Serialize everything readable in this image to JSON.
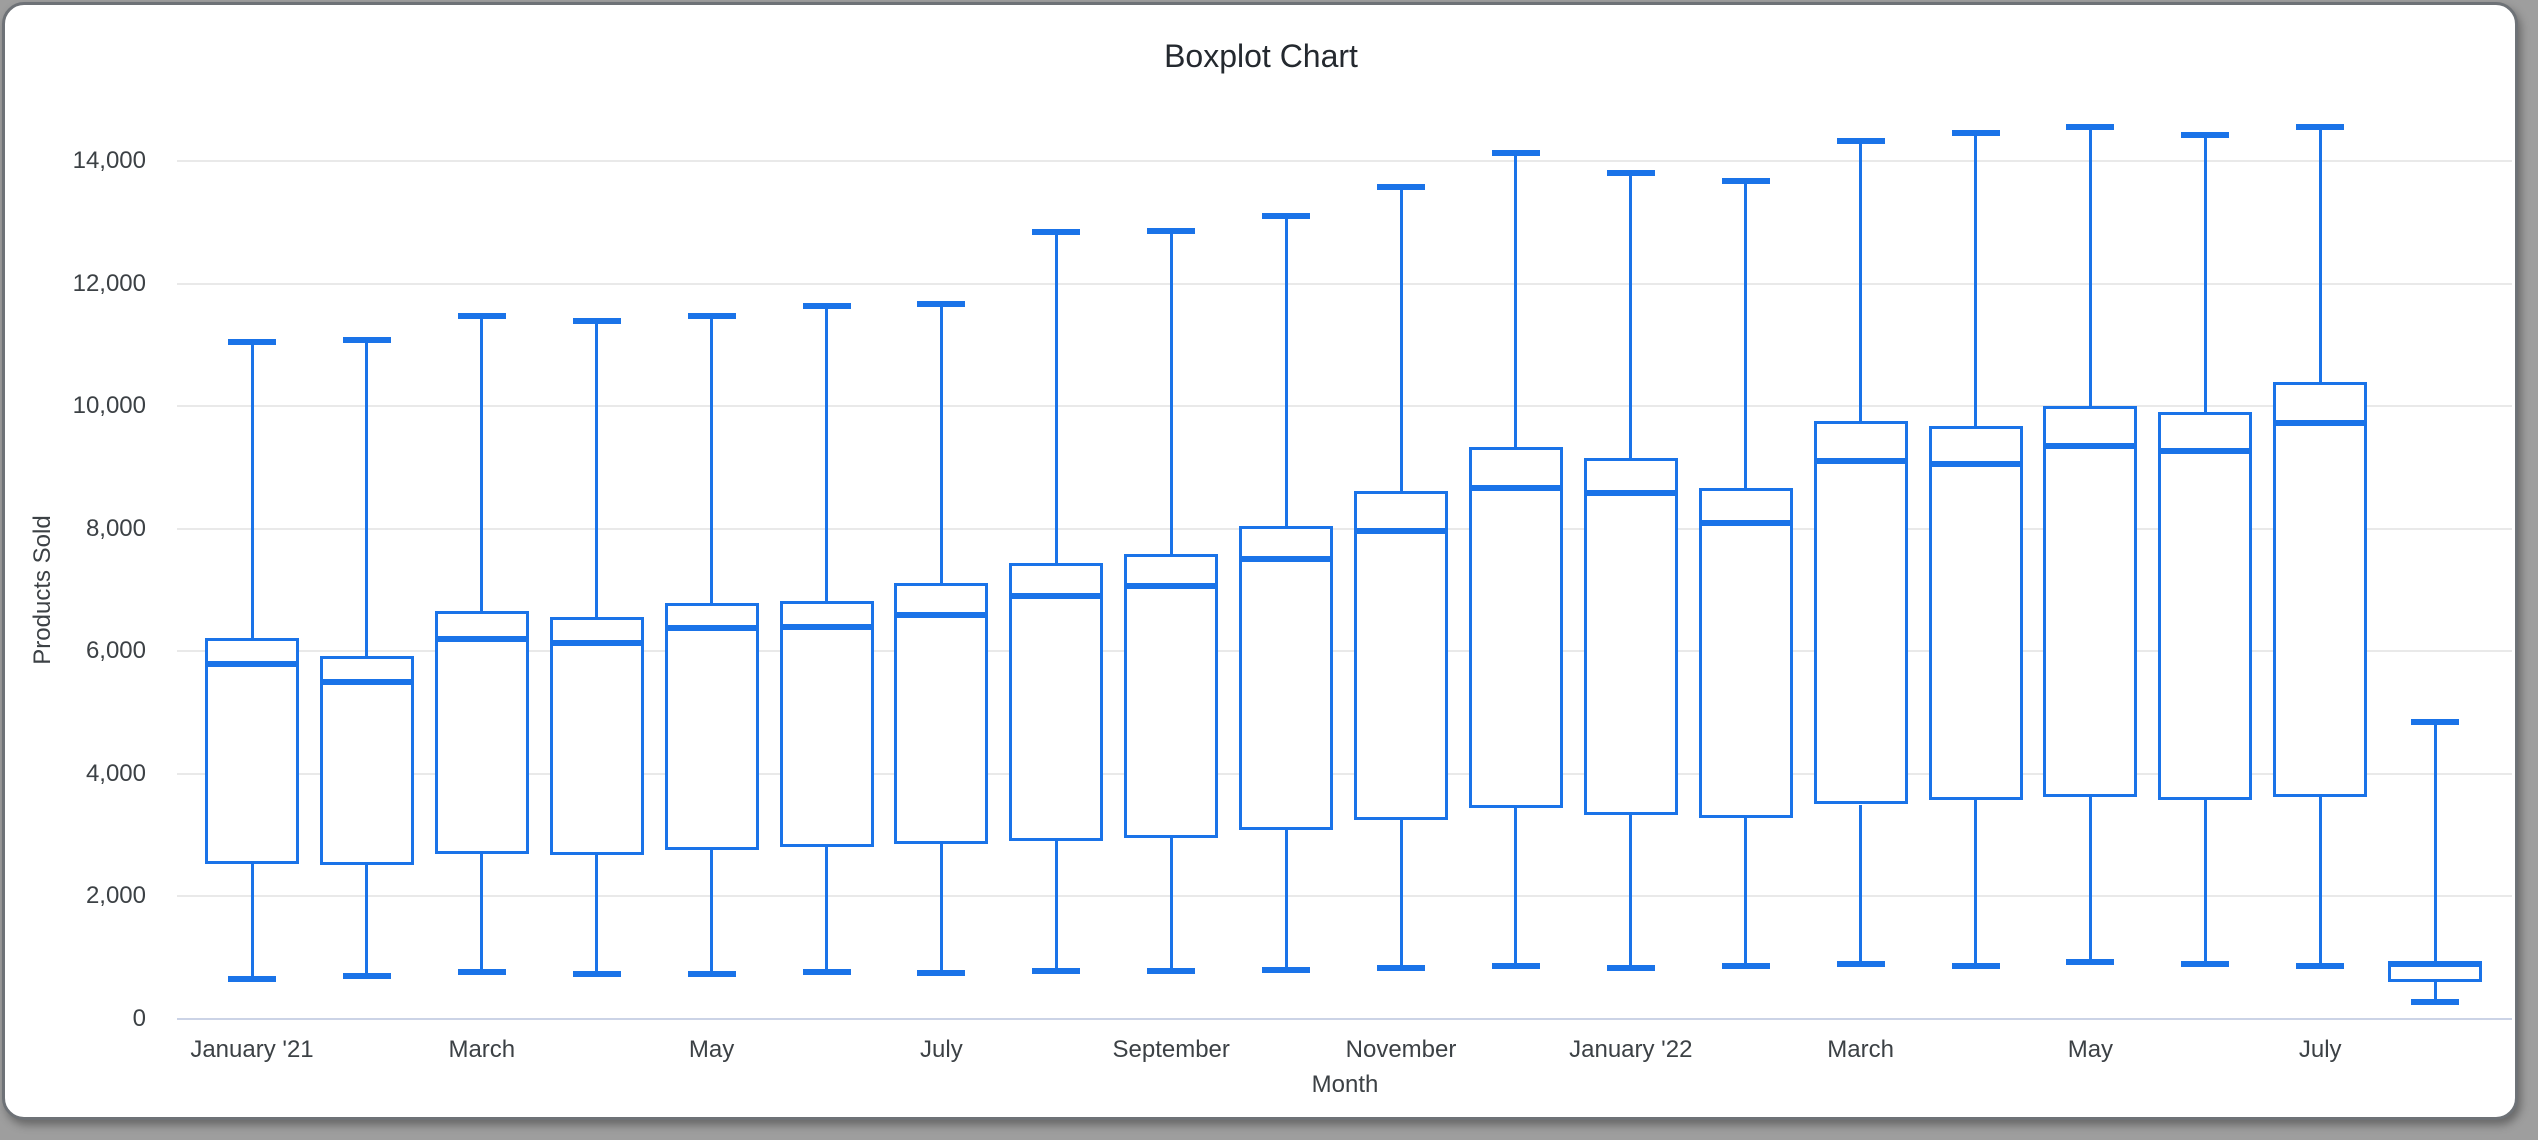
{
  "chart_data": {
    "type": "boxplot",
    "title": "Boxplot Chart",
    "xlabel": "Month",
    "ylabel": "Products Sold",
    "ylim": [
      0,
      14000
    ],
    "grid": true,
    "legend_position": "none",
    "y_ticks": [
      0,
      2000,
      4000,
      6000,
      8000,
      10000,
      12000,
      14000
    ],
    "y_tick_labels": [
      "0",
      "2,000",
      "4,000",
      "6,000",
      "8,000",
      "10,000",
      "12,000",
      "14,000"
    ],
    "x_tick_labels": [
      "January '21",
      "March",
      "May",
      "July",
      "September",
      "November",
      "January '22",
      "March",
      "May",
      "July"
    ],
    "x_tick_every": 2,
    "n_boxes": 20,
    "boxes": [
      {
        "min": 650,
        "q1": 2530,
        "median": 5790,
        "q3": 6210,
        "max": 11050
      },
      {
        "min": 700,
        "q1": 2510,
        "median": 5500,
        "q3": 5930,
        "max": 11080
      },
      {
        "min": 760,
        "q1": 2700,
        "median": 6200,
        "q3": 6650,
        "max": 11470
      },
      {
        "min": 730,
        "q1": 2680,
        "median": 6130,
        "q3": 6560,
        "max": 11390
      },
      {
        "min": 740,
        "q1": 2760,
        "median": 6380,
        "q3": 6790,
        "max": 11470
      },
      {
        "min": 760,
        "q1": 2810,
        "median": 6390,
        "q3": 6820,
        "max": 11630
      },
      {
        "min": 750,
        "q1": 2850,
        "median": 6600,
        "q3": 7110,
        "max": 11660
      },
      {
        "min": 790,
        "q1": 2900,
        "median": 6900,
        "q3": 7440,
        "max": 12840
      },
      {
        "min": 780,
        "q1": 2950,
        "median": 7070,
        "q3": 7580,
        "max": 12860
      },
      {
        "min": 800,
        "q1": 3080,
        "median": 7500,
        "q3": 8040,
        "max": 13100
      },
      {
        "min": 840,
        "q1": 3240,
        "median": 7970,
        "q3": 8620,
        "max": 13580
      },
      {
        "min": 860,
        "q1": 3440,
        "median": 8670,
        "q3": 9330,
        "max": 14130
      },
      {
        "min": 830,
        "q1": 3330,
        "median": 8580,
        "q3": 9160,
        "max": 13800
      },
      {
        "min": 860,
        "q1": 3280,
        "median": 8100,
        "q3": 8660,
        "max": 13670
      },
      {
        "min": 890,
        "q1": 3500,
        "median": 9100,
        "q3": 9760,
        "max": 14330
      },
      {
        "min": 870,
        "q1": 3580,
        "median": 9060,
        "q3": 9680,
        "max": 14460
      },
      {
        "min": 930,
        "q1": 3620,
        "median": 9350,
        "q3": 10000,
        "max": 14550
      },
      {
        "min": 890,
        "q1": 3580,
        "median": 9270,
        "q3": 9900,
        "max": 14420
      },
      {
        "min": 870,
        "q1": 3620,
        "median": 9720,
        "q3": 10400,
        "max": 14560
      },
      {
        "min": 270,
        "q1": 600,
        "median": 900,
        "q3": 935,
        "max": 4850
      }
    ],
    "colors": {
      "box": "#1a73e8",
      "grid": "#e9e9e9",
      "baseline": "#cbd3e6",
      "text": "#3c4145",
      "title": "#24292f",
      "outside_background": "#9e9e9e",
      "card_background": "#ffffff",
      "card_border": "#6e7277"
    }
  }
}
